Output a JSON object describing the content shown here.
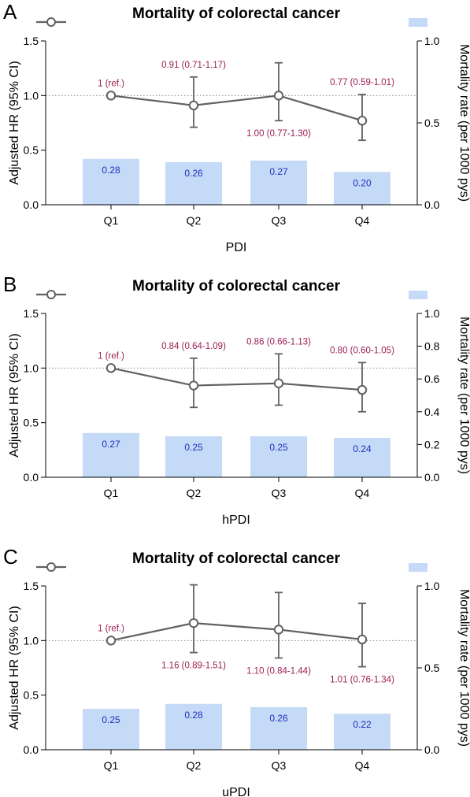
{
  "colors": {
    "bar": "#c5daf6",
    "hr_line": "#616161",
    "hr_label": "#9c1d52",
    "bar_label": "#1f2fbf",
    "ref_line": "#8a8a8a"
  },
  "chart_data": [
    {
      "type": "bar+line",
      "panel": "A",
      "title": "Mortality of colorectal cancer",
      "xlabel": "PDI",
      "ylabel": "Adjusted HR (95% CI)",
      "ylabel_right": "Mortality rate (per 1000 pys)",
      "categories": [
        "Q1",
        "Q2",
        "Q3",
        "Q4"
      ],
      "ylim": [
        0,
        1.5
      ],
      "yticks": [
        "0.0",
        "0.5",
        "1.0",
        "1.5"
      ],
      "ylim_right": [
        0,
        1.0
      ],
      "yticks_right": [
        "0.0",
        "0.5",
        "1.0"
      ],
      "reference_line": 1.0,
      "grid": false,
      "legend": "top-left line marker, top-right bar swatch",
      "bars": {
        "values": [
          0.28,
          0.26,
          0.27,
          0.2
        ],
        "labels": [
          "0.28",
          "0.26",
          "0.27",
          "0.20"
        ]
      },
      "hr": {
        "values": [
          1.0,
          0.91,
          1.0,
          0.77
        ],
        "lower": [
          1.0,
          0.71,
          0.77,
          0.59
        ],
        "upper": [
          1.0,
          1.17,
          1.3,
          1.01
        ],
        "labels": [
          "1 (ref.)",
          "0.91 (0.71-1.17)",
          "1.00 (0.77-1.30)",
          "0.77 (0.59-1.01)"
        ],
        "label_pos": [
          "above",
          "above",
          "below",
          "above"
        ]
      }
    },
    {
      "type": "bar+line",
      "panel": "B",
      "title": "Mortality of colorectal cancer",
      "xlabel": "hPDI",
      "ylabel": "Adjusted HR (95% CI)",
      "ylabel_right": "Mortality rate (per 1000 pys)",
      "categories": [
        "Q1",
        "Q2",
        "Q3",
        "Q4"
      ],
      "ylim": [
        0,
        1.5
      ],
      "yticks": [
        "0.0",
        "0.5",
        "1.0",
        "1.5"
      ],
      "ylim_right": [
        0,
        1.0
      ],
      "yticks_right": [
        "0.0",
        "0.2",
        "0.4",
        "0.6",
        "0.8",
        "1.0"
      ],
      "reference_line": 1.0,
      "grid": false,
      "legend": "top-left line marker, top-right bar swatch",
      "bars": {
        "values": [
          0.27,
          0.25,
          0.25,
          0.24
        ],
        "labels": [
          "0.27",
          "0.25",
          "0.25",
          "0.24"
        ]
      },
      "hr": {
        "values": [
          1.0,
          0.84,
          0.86,
          0.8
        ],
        "lower": [
          1.0,
          0.64,
          0.66,
          0.6
        ],
        "upper": [
          1.0,
          1.09,
          1.13,
          1.05
        ],
        "labels": [
          "1 (ref.)",
          "0.84 (0.64-1.09)",
          "0.86 (0.66-1.13)",
          "0.80 (0.60-1.05)"
        ],
        "label_pos": [
          "above",
          "above",
          "above",
          "above"
        ]
      }
    },
    {
      "type": "bar+line",
      "panel": "C",
      "title": "Mortality of colorectal cancer",
      "xlabel": "uPDI",
      "ylabel": "Adjusted HR (95% CI)",
      "ylabel_right": "Mortality rate (per 1000 pys)",
      "categories": [
        "Q1",
        "Q2",
        "Q3",
        "Q4"
      ],
      "ylim": [
        0,
        1.5
      ],
      "yticks": [
        "0.0",
        "0.5",
        "1.0",
        "1.5"
      ],
      "ylim_right": [
        0,
        1.0
      ],
      "yticks_right": [
        "0.0",
        "0.5",
        "1.0"
      ],
      "reference_line": 1.0,
      "grid": false,
      "legend": "top-left line marker, top-right bar swatch",
      "bars": {
        "values": [
          0.25,
          0.28,
          0.26,
          0.22
        ],
        "labels": [
          "0.25",
          "0.28",
          "0.26",
          "0.22"
        ]
      },
      "hr": {
        "values": [
          1.0,
          1.16,
          1.1,
          1.01
        ],
        "lower": [
          1.0,
          0.89,
          0.84,
          0.76
        ],
        "upper": [
          1.0,
          1.51,
          1.44,
          1.34
        ],
        "labels": [
          "1 (ref.)",
          "1.16 (0.89-1.51)",
          "1.10 (0.84-1.44)",
          "1.01 (0.76-1.34)"
        ],
        "label_pos": [
          "above",
          "below",
          "below",
          "below"
        ]
      }
    }
  ]
}
